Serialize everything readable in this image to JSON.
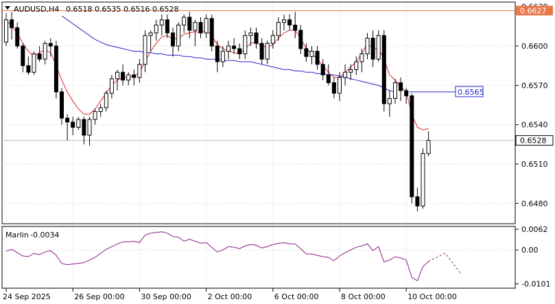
{
  "chart_data": {
    "type": "candlestick",
    "header": {
      "symbol": "AUDUSD,H4",
      "ohlc": "0.6518 0.6535 0.6516 0.6528"
    },
    "price_axis": {
      "ylim": [
        0.6465,
        0.6633
      ],
      "ticks": [
        "0.6630",
        "0.6600",
        "0.6570",
        "0.6540",
        "0.6510",
        "0.6480"
      ],
      "tick_values": [
        0.663,
        0.66,
        0.657,
        0.654,
        0.651,
        0.648
      ],
      "current_price_label": "0.6528",
      "current_price": 0.6528,
      "level_label": "0.6627",
      "level": 0.6627,
      "ma_annotation": "0.6565",
      "ma_annotation_value": 0.6565
    },
    "time_axis": {
      "labels": [
        "24 Sep 2025",
        "26 Sep 00:00",
        "30 Sep 00:00",
        "2 Oct 00:00",
        "6 Oct 00:00",
        "8 Oct 00:00",
        "10 Oct 00:00"
      ],
      "label_bar_index": [
        0,
        12,
        24,
        36,
        48,
        60,
        72
      ]
    },
    "candles": [
      [
        0.6603,
        0.6625,
        0.66,
        0.662
      ],
      [
        0.662,
        0.6626,
        0.6605,
        0.6614
      ],
      [
        0.6614,
        0.6618,
        0.6598,
        0.66
      ],
      [
        0.66,
        0.6602,
        0.658,
        0.6585
      ],
      [
        0.6585,
        0.6592,
        0.6578,
        0.658
      ],
      [
        0.658,
        0.6596,
        0.6578,
        0.6594
      ],
      [
        0.6594,
        0.66,
        0.6588,
        0.659
      ],
      [
        0.659,
        0.6604,
        0.6586,
        0.6602
      ],
      [
        0.6602,
        0.6606,
        0.6592,
        0.66
      ],
      [
        0.66,
        0.6604,
        0.656,
        0.6565
      ],
      [
        0.6565,
        0.6568,
        0.654,
        0.6545
      ],
      [
        0.6545,
        0.6548,
        0.6528,
        0.6542
      ],
      [
        0.6542,
        0.6546,
        0.6532,
        0.6538
      ],
      [
        0.6538,
        0.6546,
        0.6536,
        0.6544
      ],
      [
        0.6544,
        0.6546,
        0.6525,
        0.6532
      ],
      [
        0.6532,
        0.6546,
        0.6524,
        0.6544
      ],
      [
        0.6544,
        0.6552,
        0.654,
        0.655
      ],
      [
        0.655,
        0.6556,
        0.6546,
        0.6553
      ],
      [
        0.6553,
        0.6566,
        0.655,
        0.6564
      ],
      [
        0.6564,
        0.6578,
        0.656,
        0.6575
      ],
      [
        0.6575,
        0.6582,
        0.6566,
        0.658
      ],
      [
        0.658,
        0.6586,
        0.657,
        0.6574
      ],
      [
        0.6574,
        0.658,
        0.657,
        0.6578
      ],
      [
        0.6578,
        0.6582,
        0.657,
        0.6576
      ],
      [
        0.6576,
        0.659,
        0.6572,
        0.6586
      ],
      [
        0.6586,
        0.6612,
        0.658,
        0.6608
      ],
      [
        0.6608,
        0.6612,
        0.6596,
        0.661
      ],
      [
        0.661,
        0.662,
        0.6604,
        0.6616
      ],
      [
        0.6616,
        0.6624,
        0.6608,
        0.662
      ],
      [
        0.662,
        0.6624,
        0.6606,
        0.661
      ],
      [
        0.661,
        0.6614,
        0.6592,
        0.66
      ],
      [
        0.66,
        0.6618,
        0.6596,
        0.6616
      ],
      [
        0.6616,
        0.6624,
        0.661,
        0.6622
      ],
      [
        0.6622,
        0.6626,
        0.6606,
        0.6612
      ],
      [
        0.6612,
        0.662,
        0.66,
        0.6618
      ],
      [
        0.6618,
        0.6622,
        0.6606,
        0.661
      ],
      [
        0.661,
        0.6624,
        0.6606,
        0.6621
      ],
      [
        0.6621,
        0.6624,
        0.6596,
        0.66
      ],
      [
        0.66,
        0.6604,
        0.658,
        0.6588
      ],
      [
        0.6588,
        0.66,
        0.6584,
        0.6596
      ],
      [
        0.6596,
        0.6604,
        0.659,
        0.66
      ],
      [
        0.66,
        0.6606,
        0.6594,
        0.6598
      ],
      [
        0.6598,
        0.6602,
        0.659,
        0.6594
      ],
      [
        0.6594,
        0.6612,
        0.659,
        0.6608
      ],
      [
        0.6608,
        0.6614,
        0.66,
        0.661
      ],
      [
        0.661,
        0.6614,
        0.6598,
        0.6602
      ],
      [
        0.6602,
        0.6606,
        0.6586,
        0.659
      ],
      [
        0.659,
        0.6604,
        0.6586,
        0.6602
      ],
      [
        0.6602,
        0.6612,
        0.6598,
        0.6608
      ],
      [
        0.6608,
        0.6622,
        0.6604,
        0.6618
      ],
      [
        0.6618,
        0.6624,
        0.6612,
        0.662
      ],
      [
        0.662,
        0.6624,
        0.6612,
        0.6616
      ],
      [
        0.6616,
        0.6626,
        0.6606,
        0.6612
      ],
      [
        0.6612,
        0.6616,
        0.6594,
        0.6598
      ],
      [
        0.6598,
        0.6602,
        0.6588,
        0.6592
      ],
      [
        0.6592,
        0.66,
        0.6586,
        0.6596
      ],
      [
        0.6596,
        0.66,
        0.6582,
        0.6586
      ],
      [
        0.6586,
        0.659,
        0.6574,
        0.6578
      ],
      [
        0.6578,
        0.6586,
        0.657,
        0.6572
      ],
      [
        0.6572,
        0.6576,
        0.656,
        0.6564
      ],
      [
        0.6564,
        0.658,
        0.6558,
        0.6576
      ],
      [
        0.6576,
        0.6586,
        0.657,
        0.658
      ],
      [
        0.658,
        0.6586,
        0.6574,
        0.6582
      ],
      [
        0.6582,
        0.6592,
        0.6578,
        0.6588
      ],
      [
        0.6588,
        0.6598,
        0.658,
        0.6594
      ],
      [
        0.6594,
        0.661,
        0.659,
        0.6606
      ],
      [
        0.6606,
        0.6612,
        0.6584,
        0.659
      ],
      [
        0.659,
        0.6612,
        0.6588,
        0.6608
      ],
      [
        0.6608,
        0.6612,
        0.655,
        0.6556
      ],
      [
        0.6556,
        0.6566,
        0.6546,
        0.656
      ],
      [
        0.656,
        0.6575,
        0.6556,
        0.6572
      ],
      [
        0.6572,
        0.6576,
        0.6558,
        0.6566
      ],
      [
        0.6566,
        0.6568,
        0.6556,
        0.6562
      ],
      [
        0.6562,
        0.6564,
        0.648,
        0.6485
      ],
      [
        0.6485,
        0.6492,
        0.6474,
        0.6478
      ],
      [
        0.6478,
        0.6522,
        0.6476,
        0.6518
      ],
      [
        0.6518,
        0.6535,
        0.6516,
        0.6528
      ]
    ],
    "red_line": [
      0.662,
      0.6615,
      0.661,
      0.6602,
      0.6596,
      0.6592,
      0.6595,
      0.6597,
      0.6595,
      0.6585,
      0.6574,
      0.6565,
      0.6558,
      0.6552,
      0.6548,
      0.6548,
      0.6552,
      0.6558,
      0.6564,
      0.657,
      0.6574,
      0.6576,
      0.6576,
      0.6577,
      0.658,
      0.6588,
      0.6596,
      0.6602,
      0.6607,
      0.6608,
      0.6605,
      0.6606,
      0.6609,
      0.661,
      0.6611,
      0.661,
      0.6612,
      0.6608,
      0.6601,
      0.6598,
      0.6596,
      0.6595,
      0.6594,
      0.6598,
      0.6602,
      0.6603,
      0.66,
      0.6599,
      0.6601,
      0.6606,
      0.661,
      0.6612,
      0.6612,
      0.6606,
      0.6598,
      0.6594,
      0.659,
      0.6585,
      0.658,
      0.6576,
      0.6576,
      0.658,
      0.6584,
      0.6588,
      0.6594,
      0.6602,
      0.6598,
      0.6598,
      0.659,
      0.6578,
      0.6574,
      0.6569,
      0.6565,
      0.6548,
      0.6538,
      0.6536,
      0.6537
    ],
    "blue_line_start_index": 10,
    "blue_line": [
      0.6623,
      0.662,
      0.6617,
      0.6614,
      0.6611,
      0.6608,
      0.6605,
      0.6603,
      0.6601,
      0.66,
      0.6599,
      0.6598,
      0.6597,
      0.6596,
      0.6596,
      0.6595,
      0.6595,
      0.6594,
      0.6594,
      0.6593,
      0.6593,
      0.6593,
      0.6592,
      0.6592,
      0.6591,
      0.6591,
      0.659,
      0.659,
      0.659,
      0.6589,
      0.6589,
      0.6589,
      0.6588,
      0.6588,
      0.6588,
      0.6587,
      0.6586,
      0.6585,
      0.6584,
      0.6583,
      0.6582,
      0.6582,
      0.6581,
      0.6581,
      0.658,
      0.658,
      0.6579,
      0.6579,
      0.6578,
      0.6578,
      0.6577,
      0.6576,
      0.6575,
      0.6574,
      0.6573,
      0.6572,
      0.6571,
      0.657,
      0.6568,
      0.6566,
      0.6565
    ],
    "indicator": {
      "name": "Marlin",
      "value_label": "-0.0034",
      "ylim": [
        -0.0112,
        0.0068
      ],
      "ticks": [
        "0.0062",
        "0.00",
        "-0.0101"
      ],
      "tick_values": [
        0.0062,
        0.0,
        -0.0101
      ],
      "values": [
        -0.0004,
        0.0002,
        -0.0008,
        -0.0018,
        -0.002,
        -0.001,
        -0.0014,
        -0.0006,
        -0.0002,
        -0.0016,
        -0.004,
        -0.0044,
        -0.0042,
        -0.004,
        -0.0038,
        -0.003,
        -0.0022,
        -0.001,
        0.0002,
        0.001,
        0.0018,
        0.0024,
        0.0024,
        0.0026,
        0.0022,
        0.0044,
        0.005,
        0.0052,
        0.0054,
        0.005,
        0.004,
        0.0038,
        0.0026,
        0.0032,
        0.0026,
        0.002,
        0.0022,
        0.0008,
        -0.0006,
        0.0,
        0.001,
        0.0008,
        0.0004,
        0.0012,
        0.0016,
        0.0014,
        0.0006,
        0.001,
        0.0016,
        0.002,
        0.0022,
        0.0018,
        0.0018,
        0.0004,
        -0.0012,
        -0.0012,
        -0.0016,
        -0.002,
        -0.0022,
        -0.0032,
        -0.0018,
        -0.0008,
        0.0,
        0.0008,
        0.0012,
        0.0018,
        -0.0002,
        0.001,
        -0.0036,
        -0.003,
        -0.002,
        -0.0024,
        -0.003,
        -0.0082,
        -0.0092,
        -0.005,
        -0.0034
      ],
      "projection": [
        -0.0034,
        -0.001,
        -0.0074
      ]
    },
    "colors": {
      "bull_candle": "#ffffff",
      "bear_candle": "#000000",
      "red_line": "#e0262b",
      "blue_line": "#2323c8",
      "indicator_line": "#8b1a8b",
      "level_line": "#e8784a",
      "grid": "#d0d0d0"
    },
    "grid": true
  }
}
